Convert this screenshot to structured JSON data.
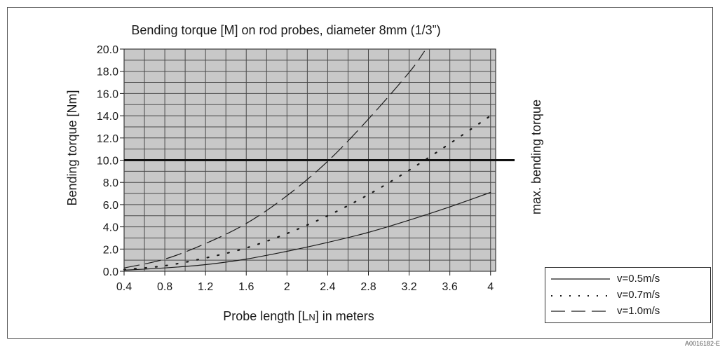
{
  "figure_id": "A0016182-E",
  "chart_data": {
    "type": "line",
    "title": "Bending torque [M] on rod probes, diameter 8mm (1/3”)",
    "xlabel": "Probe length [LN] in meters",
    "ylabel": "Bending torque [Nm]",
    "xlim": [
      0.4,
      4.05
    ],
    "ylim": [
      0,
      20
    ],
    "x_ticks": [
      "0.4",
      "0.8",
      "1.2",
      "1.6",
      "2",
      "2.4",
      "2.8",
      "3.2",
      "3.6",
      "4"
    ],
    "y_ticks": [
      "0.0",
      "2.0",
      "4.0",
      "6.0",
      "8.0",
      "10.0",
      "12.0",
      "14.0",
      "16.0",
      "18.0",
      "20.0"
    ],
    "grid": true,
    "legend_position": "bottom-right",
    "series": [
      {
        "name": "v=0.5m/s",
        "style": "solid",
        "x": [
          0.4,
          0.8,
          1.2,
          1.6,
          2.0,
          2.4,
          2.8,
          3.2,
          3.6,
          4.0
        ],
        "y": [
          0.1,
          0.3,
          0.6,
          1.1,
          1.8,
          2.6,
          3.5,
          4.6,
          5.8,
          7.1
        ]
      },
      {
        "name": "v=0.7m/s",
        "style": "dotted",
        "x": [
          0.4,
          0.8,
          1.2,
          1.6,
          2.0,
          2.4,
          2.8,
          3.2,
          3.6,
          4.0
        ],
        "y": [
          0.15,
          0.5,
          1.2,
          2.1,
          3.4,
          5.0,
          6.9,
          9.1,
          11.5,
          14.0
        ]
      },
      {
        "name": "v=1.0m/s",
        "style": "dashed",
        "x": [
          0.4,
          0.8,
          1.2,
          1.6,
          2.0,
          2.4,
          2.8,
          3.2,
          3.35
        ],
        "y": [
          0.3,
          1.1,
          2.5,
          4.3,
          6.8,
          9.9,
          13.7,
          17.9,
          19.8
        ]
      }
    ],
    "reference_line": {
      "y": 10.0,
      "label": "max. bending torque"
    }
  },
  "colors": {
    "plot_bg": "#c8c8c8",
    "grid": "#4a4a4a",
    "line": "#1a1a1a"
  }
}
